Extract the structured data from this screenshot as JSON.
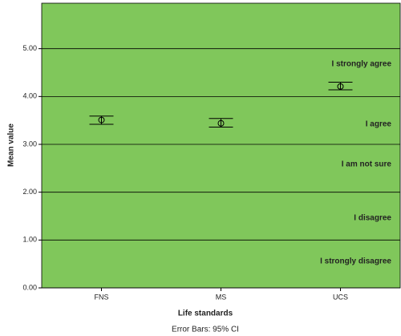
{
  "chart_data": {
    "type": "errorbar",
    "x_label": "Life standards",
    "y_label": "Mean value",
    "footnote": "Error Bars: 95% CI",
    "categories": [
      "FNS",
      "MS",
      "UCS"
    ],
    "values": [
      3.51,
      3.44,
      4.21
    ],
    "ci_low": [
      3.42,
      3.36,
      4.14
    ],
    "ci_high": [
      3.59,
      3.54,
      4.3
    ],
    "ylim": [
      0,
      5.95
    ],
    "yticks": [
      {
        "value": 0,
        "label": "0.00"
      },
      {
        "value": 1,
        "label": "1.00"
      },
      {
        "value": 2,
        "label": "2.00"
      },
      {
        "value": 3,
        "label": "3.00"
      },
      {
        "value": 4,
        "label": "4.00"
      },
      {
        "value": 5,
        "label": "5.00"
      }
    ],
    "grid": true,
    "background": "#80c75b",
    "color": "#000000",
    "annotations": [
      "I strongly agree",
      "I agree",
      "I am not sure",
      "I disagree",
      "I strongly disagree"
    ]
  }
}
